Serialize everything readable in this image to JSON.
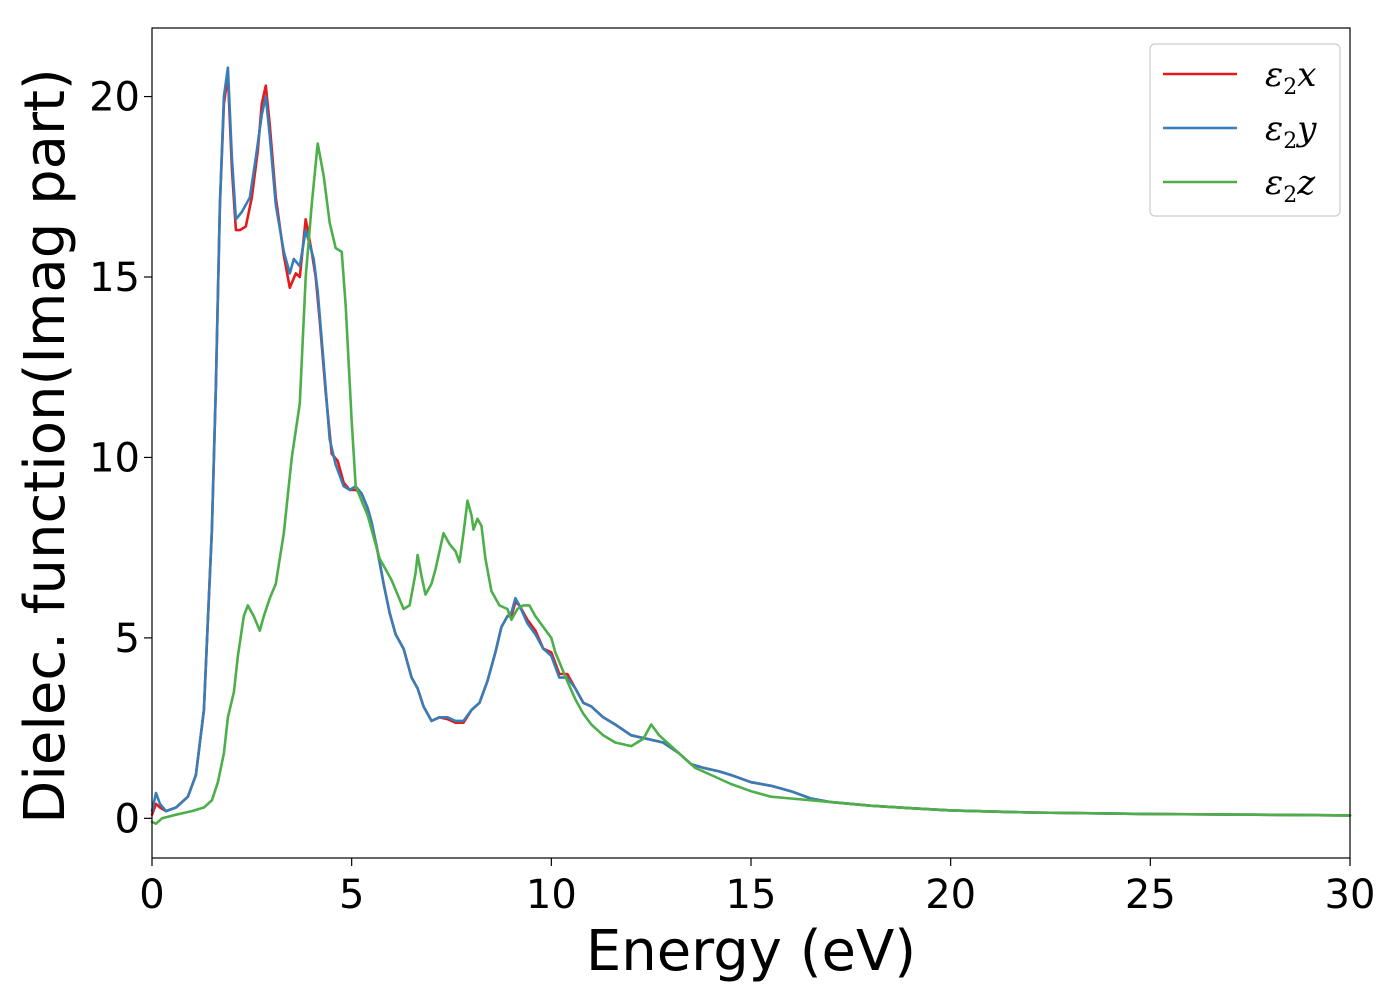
{
  "chart_data": {
    "type": "line",
    "xlabel": "Energy (eV)",
    "ylabel": "Dielec. function(Imag part)",
    "xlim": [
      0,
      30
    ],
    "ylim": [
      -1.1,
      21.9
    ],
    "xticks": [
      0,
      5,
      10,
      15,
      20,
      25,
      30
    ],
    "yticks": [
      0,
      5,
      10,
      15,
      20
    ],
    "grid": false,
    "legend_position": "top-right",
    "series": [
      {
        "name": "ε₂x",
        "legend_symbol": "ε",
        "legend_sub": "2",
        "legend_var": "x",
        "color": "#e41a1c",
        "points": [
          [
            0,
            0.1
          ],
          [
            0.1,
            0.4
          ],
          [
            0.2,
            0.3
          ],
          [
            0.35,
            0.2
          ],
          [
            0.6,
            0.3
          ],
          [
            0.9,
            0.6
          ],
          [
            1.1,
            1.2
          ],
          [
            1.3,
            3
          ],
          [
            1.5,
            8
          ],
          [
            1.6,
            12
          ],
          [
            1.7,
            17
          ],
          [
            1.8,
            19.8
          ],
          [
            1.9,
            20.6
          ],
          [
            2.0,
            18
          ],
          [
            2.1,
            16.3
          ],
          [
            2.2,
            16.3
          ],
          [
            2.35,
            16.4
          ],
          [
            2.5,
            17.2
          ],
          [
            2.65,
            18.5
          ],
          [
            2.75,
            19.8
          ],
          [
            2.85,
            20.3
          ],
          [
            2.95,
            19.2
          ],
          [
            3.1,
            17.2
          ],
          [
            3.3,
            15.6
          ],
          [
            3.45,
            14.7
          ],
          [
            3.6,
            15.1
          ],
          [
            3.7,
            15.0
          ],
          [
            3.85,
            16.6
          ],
          [
            3.9,
            16.3
          ],
          [
            4.0,
            15.7
          ],
          [
            4.1,
            15.0
          ],
          [
            4.2,
            13.8
          ],
          [
            4.35,
            11.8
          ],
          [
            4.5,
            10.1
          ],
          [
            4.65,
            9.9
          ],
          [
            4.8,
            9.3
          ],
          [
            4.95,
            9.1
          ],
          [
            5.1,
            9.1
          ],
          [
            5.25,
            9.0
          ],
          [
            5.4,
            8.6
          ],
          [
            5.5,
            8.2
          ],
          [
            5.65,
            7.4
          ],
          [
            5.8,
            6.5
          ],
          [
            5.95,
            5.7
          ],
          [
            6.1,
            5.1
          ],
          [
            6.3,
            4.7
          ],
          [
            6.5,
            3.9
          ],
          [
            6.65,
            3.6
          ],
          [
            6.8,
            3.1
          ],
          [
            7.0,
            2.7
          ],
          [
            7.2,
            2.8
          ],
          [
            7.4,
            2.75
          ],
          [
            7.6,
            2.65
          ],
          [
            7.8,
            2.65
          ],
          [
            8.0,
            3.0
          ],
          [
            8.2,
            3.2
          ],
          [
            8.4,
            3.8
          ],
          [
            8.6,
            4.6
          ],
          [
            8.75,
            5.3
          ],
          [
            8.9,
            5.6
          ],
          [
            9.0,
            5.6
          ],
          [
            9.1,
            6.0
          ],
          [
            9.2,
            5.9
          ],
          [
            9.4,
            5.5
          ],
          [
            9.6,
            5.2
          ],
          [
            9.8,
            4.7
          ],
          [
            10.0,
            4.6
          ],
          [
            10.2,
            4.0
          ],
          [
            10.4,
            4.0
          ],
          [
            10.6,
            3.6
          ],
          [
            10.8,
            3.2
          ],
          [
            11.0,
            3.1
          ],
          [
            11.3,
            2.8
          ],
          [
            11.6,
            2.6
          ],
          [
            12.0,
            2.3
          ],
          [
            12.4,
            2.2
          ],
          [
            12.8,
            2.1
          ],
          [
            13.2,
            1.8
          ],
          [
            13.5,
            1.5
          ],
          [
            13.8,
            1.4
          ],
          [
            14.2,
            1.3
          ],
          [
            14.5,
            1.2
          ],
          [
            15.0,
            1.0
          ],
          [
            15.5,
            0.9
          ],
          [
            16.0,
            0.75
          ],
          [
            16.5,
            0.55
          ],
          [
            17.0,
            0.45
          ],
          [
            18.0,
            0.35
          ],
          [
            19.0,
            0.28
          ],
          [
            20.0,
            0.22
          ],
          [
            22.0,
            0.16
          ],
          [
            25.0,
            0.12
          ],
          [
            30.0,
            0.08
          ]
        ]
      },
      {
        "name": "ε₂y",
        "legend_symbol": "ε",
        "legend_sub": "2",
        "legend_var": "y",
        "color": "#377eb8",
        "points": [
          [
            0,
            0.2
          ],
          [
            0.1,
            0.7
          ],
          [
            0.2,
            0.4
          ],
          [
            0.35,
            0.2
          ],
          [
            0.6,
            0.3
          ],
          [
            0.9,
            0.6
          ],
          [
            1.1,
            1.2
          ],
          [
            1.3,
            3
          ],
          [
            1.5,
            8
          ],
          [
            1.6,
            12
          ],
          [
            1.7,
            17
          ],
          [
            1.8,
            20
          ],
          [
            1.9,
            20.8
          ],
          [
            2.0,
            18.3
          ],
          [
            2.1,
            16.6
          ],
          [
            2.25,
            16.8
          ],
          [
            2.45,
            17.2
          ],
          [
            2.6,
            18.3
          ],
          [
            2.75,
            19.5
          ],
          [
            2.85,
            20.0
          ],
          [
            2.95,
            18.9
          ],
          [
            3.1,
            17.0
          ],
          [
            3.3,
            15.7
          ],
          [
            3.45,
            15.1
          ],
          [
            3.55,
            15.5
          ],
          [
            3.7,
            15.3
          ],
          [
            3.85,
            16.3
          ],
          [
            3.95,
            15.9
          ],
          [
            4.05,
            15.5
          ],
          [
            4.15,
            14.6
          ],
          [
            4.3,
            12.6
          ],
          [
            4.45,
            10.5
          ],
          [
            4.6,
            9.8
          ],
          [
            4.8,
            9.2
          ],
          [
            4.95,
            9.1
          ],
          [
            5.1,
            9.2
          ],
          [
            5.25,
            9.0
          ],
          [
            5.4,
            8.6
          ],
          [
            5.5,
            8.2
          ],
          [
            5.65,
            7.4
          ],
          [
            5.8,
            6.5
          ],
          [
            5.95,
            5.7
          ],
          [
            6.1,
            5.1
          ],
          [
            6.3,
            4.7
          ],
          [
            6.5,
            3.9
          ],
          [
            6.65,
            3.6
          ],
          [
            6.8,
            3.1
          ],
          [
            7.0,
            2.7
          ],
          [
            7.2,
            2.8
          ],
          [
            7.4,
            2.8
          ],
          [
            7.6,
            2.7
          ],
          [
            7.8,
            2.7
          ],
          [
            8.0,
            3.0
          ],
          [
            8.2,
            3.2
          ],
          [
            8.4,
            3.8
          ],
          [
            8.6,
            4.6
          ],
          [
            8.75,
            5.3
          ],
          [
            8.9,
            5.6
          ],
          [
            9.0,
            5.7
          ],
          [
            9.1,
            6.1
          ],
          [
            9.2,
            5.9
          ],
          [
            9.4,
            5.4
          ],
          [
            9.6,
            5.1
          ],
          [
            9.8,
            4.7
          ],
          [
            10.0,
            4.5
          ],
          [
            10.2,
            3.9
          ],
          [
            10.4,
            3.9
          ],
          [
            10.6,
            3.6
          ],
          [
            10.8,
            3.2
          ],
          [
            11.0,
            3.1
          ],
          [
            11.3,
            2.8
          ],
          [
            11.6,
            2.6
          ],
          [
            12.0,
            2.3
          ],
          [
            12.4,
            2.2
          ],
          [
            12.8,
            2.1
          ],
          [
            13.2,
            1.8
          ],
          [
            13.5,
            1.5
          ],
          [
            13.8,
            1.4
          ],
          [
            14.2,
            1.3
          ],
          [
            14.5,
            1.2
          ],
          [
            15.0,
            1.0
          ],
          [
            15.5,
            0.9
          ],
          [
            16.0,
            0.75
          ],
          [
            16.5,
            0.55
          ],
          [
            17.0,
            0.45
          ],
          [
            18.0,
            0.35
          ],
          [
            19.0,
            0.28
          ],
          [
            20.0,
            0.22
          ],
          [
            22.0,
            0.16
          ],
          [
            25.0,
            0.12
          ],
          [
            30.0,
            0.08
          ]
        ]
      },
      {
        "name": "ε₂z",
        "legend_symbol": "ε",
        "legend_sub": "2",
        "legend_var": "z",
        "color": "#4daf4a",
        "points": [
          [
            0,
            -0.1
          ],
          [
            0.1,
            -0.15
          ],
          [
            0.25,
            0.0
          ],
          [
            0.6,
            0.1
          ],
          [
            1.0,
            0.2
          ],
          [
            1.3,
            0.3
          ],
          [
            1.5,
            0.5
          ],
          [
            1.65,
            1.0
          ],
          [
            1.8,
            1.8
          ],
          [
            1.9,
            2.8
          ],
          [
            2.05,
            3.5
          ],
          [
            2.15,
            4.5
          ],
          [
            2.3,
            5.6
          ],
          [
            2.4,
            5.9
          ],
          [
            2.55,
            5.6
          ],
          [
            2.7,
            5.2
          ],
          [
            2.8,
            5.6
          ],
          [
            2.95,
            6.1
          ],
          [
            3.1,
            6.5
          ],
          [
            3.3,
            7.9
          ],
          [
            3.5,
            10.0
          ],
          [
            3.7,
            11.5
          ],
          [
            3.85,
            15.0
          ],
          [
            4.0,
            17.0
          ],
          [
            4.15,
            18.7
          ],
          [
            4.3,
            17.8
          ],
          [
            4.45,
            16.5
          ],
          [
            4.6,
            15.8
          ],
          [
            4.75,
            15.7
          ],
          [
            4.85,
            14.2
          ],
          [
            5.0,
            11.0
          ],
          [
            5.1,
            9.2
          ],
          [
            5.25,
            8.8
          ],
          [
            5.4,
            8.4
          ],
          [
            5.55,
            7.8
          ],
          [
            5.7,
            7.2
          ],
          [
            5.85,
            6.9
          ],
          [
            6.0,
            6.6
          ],
          [
            6.15,
            6.2
          ],
          [
            6.3,
            5.8
          ],
          [
            6.45,
            5.9
          ],
          [
            6.6,
            6.8
          ],
          [
            6.65,
            7.3
          ],
          [
            6.75,
            6.7
          ],
          [
            6.85,
            6.2
          ],
          [
            7.0,
            6.5
          ],
          [
            7.1,
            6.9
          ],
          [
            7.3,
            7.9
          ],
          [
            7.45,
            7.6
          ],
          [
            7.6,
            7.4
          ],
          [
            7.7,
            7.1
          ],
          [
            7.8,
            7.9
          ],
          [
            7.9,
            8.8
          ],
          [
            8.0,
            8.4
          ],
          [
            8.05,
            8.0
          ],
          [
            8.15,
            8.3
          ],
          [
            8.25,
            8.1
          ],
          [
            8.35,
            7.2
          ],
          [
            8.5,
            6.3
          ],
          [
            8.7,
            5.9
          ],
          [
            8.9,
            5.8
          ],
          [
            9.0,
            5.5
          ],
          [
            9.15,
            5.8
          ],
          [
            9.3,
            5.9
          ],
          [
            9.45,
            5.9
          ],
          [
            9.6,
            5.6
          ],
          [
            9.8,
            5.3
          ],
          [
            10.0,
            5.0
          ],
          [
            10.1,
            4.6
          ],
          [
            10.25,
            4.2
          ],
          [
            10.4,
            3.8
          ],
          [
            10.6,
            3.3
          ],
          [
            10.8,
            2.9
          ],
          [
            11.0,
            2.6
          ],
          [
            11.3,
            2.3
          ],
          [
            11.6,
            2.1
          ],
          [
            12.0,
            2.0
          ],
          [
            12.3,
            2.2
          ],
          [
            12.5,
            2.6
          ],
          [
            12.7,
            2.3
          ],
          [
            13.0,
            2.0
          ],
          [
            13.3,
            1.7
          ],
          [
            13.6,
            1.4
          ],
          [
            14.0,
            1.2
          ],
          [
            14.5,
            0.95
          ],
          [
            15.0,
            0.75
          ],
          [
            15.5,
            0.6
          ],
          [
            16.0,
            0.55
          ],
          [
            17.0,
            0.45
          ],
          [
            18.0,
            0.35
          ],
          [
            19.0,
            0.28
          ],
          [
            20.0,
            0.22
          ],
          [
            22.0,
            0.16
          ],
          [
            25.0,
            0.12
          ],
          [
            30.0,
            0.08
          ]
        ]
      }
    ]
  }
}
